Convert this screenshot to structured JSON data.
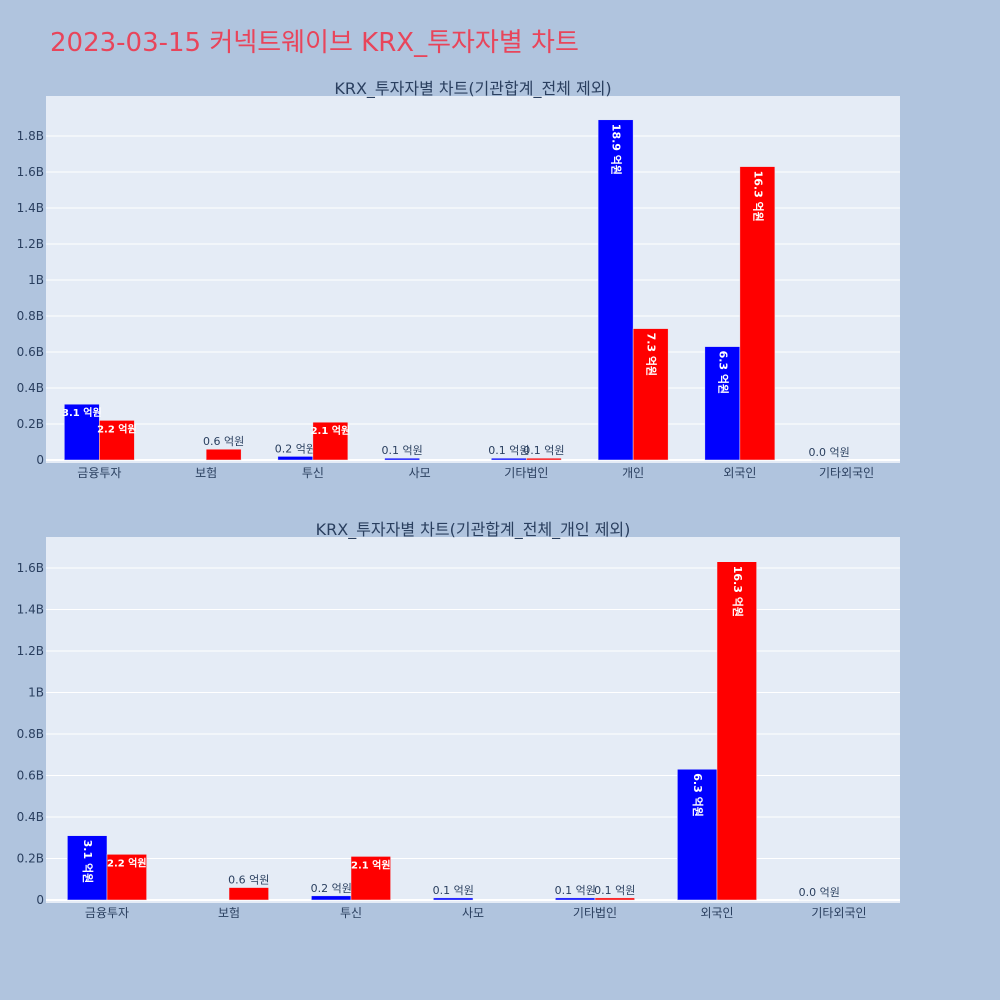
{
  "title": "2023-03-15 커넥트웨이브 KRX_투자자별 차트",
  "chart_data": [
    {
      "type": "bar",
      "title": "KRX_투자자별 차트(기관합계_전체 제외)",
      "categories": [
        "금융투자",
        "보험",
        "투신",
        "사모",
        "기타법인",
        "개인",
        "외국인",
        "기타외국인"
      ],
      "series": [
        {
          "color": "#0000ff",
          "values": [
            310000000,
            0,
            20000000,
            10000000,
            10000000,
            1890000000,
            630000000,
            1000000
          ],
          "labels": [
            "3.1 억원",
            "",
            "0.2 억원",
            "0.1 억원",
            "0.1 억원",
            "18.9 억원",
            "6.3 억원",
            "0.0 억원"
          ]
        },
        {
          "color": "#ff0000",
          "values": [
            220000000,
            60000000,
            210000000,
            0,
            10000000,
            730000000,
            1630000000,
            0
          ],
          "labels": [
            "2.2 억원",
            "0.6 억원",
            "2.1 억원",
            "",
            "0.1 억원",
            "7.3 억원",
            "16.3 억원",
            ""
          ]
        }
      ],
      "ylim": [
        0,
        2000000000
      ],
      "yticks": [
        {
          "v": 0,
          "label": "0"
        },
        {
          "v": 200000000,
          "label": "0.2B"
        },
        {
          "v": 400000000,
          "label": "0.4B"
        },
        {
          "v": 600000000,
          "label": "0.6B"
        },
        {
          "v": 800000000,
          "label": "0.8B"
        },
        {
          "v": 1000000000,
          "label": "1B"
        },
        {
          "v": 1200000000,
          "label": "1.2B"
        },
        {
          "v": 1400000000,
          "label": "1.4B"
        },
        {
          "v": 1600000000,
          "label": "1.6B"
        },
        {
          "v": 1800000000,
          "label": "1.8B"
        }
      ],
      "grid": true,
      "legend": "none"
    },
    {
      "type": "bar",
      "title": "KRX_투자자별 차트(기관합계_전체_개인 제외)",
      "categories": [
        "금융투자",
        "보험",
        "투신",
        "사모",
        "기타법인",
        "외국인",
        "기타외국인"
      ],
      "series": [
        {
          "color": "#0000ff",
          "values": [
            310000000,
            0,
            20000000,
            10000000,
            10000000,
            630000000,
            1000000
          ],
          "labels": [
            "3.1 억원",
            "",
            "0.2 억원",
            "0.1 억원",
            "0.1 억원",
            "6.3 억원",
            "0.0 억원"
          ]
        },
        {
          "color": "#ff0000",
          "values": [
            220000000,
            60000000,
            210000000,
            0,
            10000000,
            1630000000,
            0
          ],
          "labels": [
            "2.2 억원",
            "0.6 억원",
            "2.1 억원",
            "",
            "0.1 억원",
            "16.3 억원",
            ""
          ]
        }
      ],
      "ylim": [
        0,
        1730000000
      ],
      "yticks": [
        {
          "v": 0,
          "label": "0"
        },
        {
          "v": 200000000,
          "label": "0.2B"
        },
        {
          "v": 400000000,
          "label": "0.4B"
        },
        {
          "v": 600000000,
          "label": "0.6B"
        },
        {
          "v": 800000000,
          "label": "0.8B"
        },
        {
          "v": 1000000000,
          "label": "1B"
        },
        {
          "v": 1200000000,
          "label": "1.2B"
        },
        {
          "v": 1400000000,
          "label": "1.4B"
        },
        {
          "v": 1600000000,
          "label": "1.6B"
        }
      ],
      "grid": true,
      "legend": "none"
    }
  ]
}
